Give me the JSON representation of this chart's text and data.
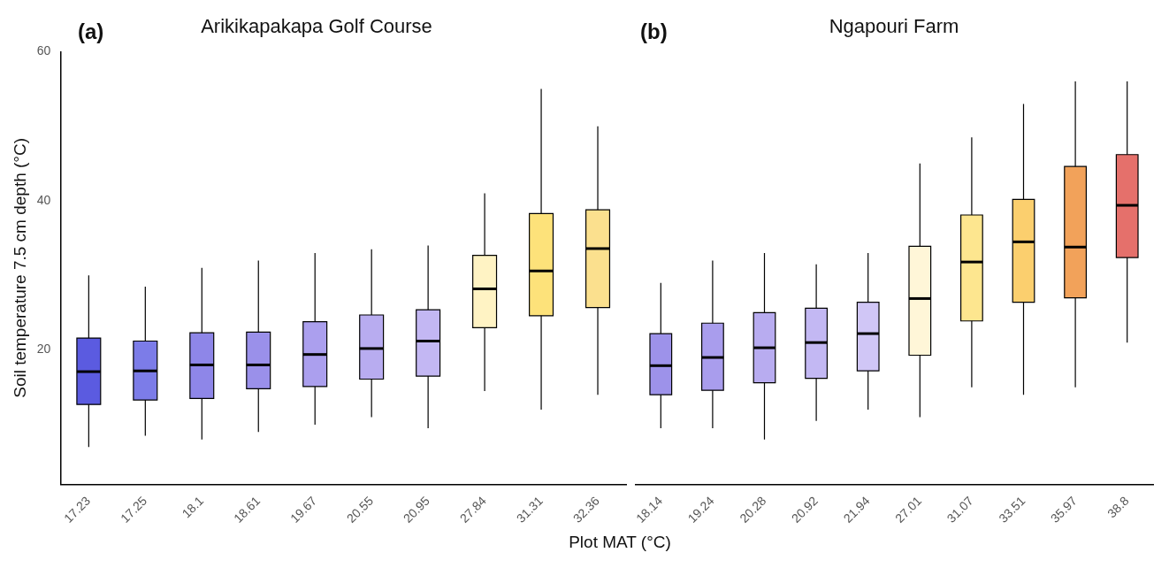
{
  "chart_data": [
    {
      "type": "box",
      "title": "Arikikapakapa Golf Course",
      "annotations": [
        "(a)"
      ],
      "ylabel": "Soil temperature 7.5 cm depth (°C)",
      "xlabel": "Plot MAT (°C)",
      "categories": [
        "17.23",
        "17.25",
        "18.1",
        "18.61",
        "19.67",
        "20.55",
        "20.95",
        "27.84",
        "31.31",
        "32.36"
      ],
      "colors": [
        "#5b5be0",
        "#7c7ce8",
        "#8e86e8",
        "#9a90ea",
        "#ab9fee",
        "#b8acf0",
        "#c3b7f3",
        "#fff3c4",
        "#fde27a",
        "#fbe08e"
      ],
      "boxes": [
        {
          "low": 7,
          "q1": 12.7,
          "median": 17.1,
          "q3": 21.6,
          "high": 30
        },
        {
          "low": 8.5,
          "q1": 13.3,
          "median": 17.2,
          "q3": 21.2,
          "high": 28.5
        },
        {
          "low": 8,
          "q1": 13.5,
          "median": 18,
          "q3": 22.3,
          "high": 31
        },
        {
          "low": 9,
          "q1": 14.8,
          "median": 18,
          "q3": 22.4,
          "high": 32
        },
        {
          "low": 10,
          "q1": 15.1,
          "median": 19.4,
          "q3": 23.8,
          "high": 33
        },
        {
          "low": 11,
          "q1": 16.1,
          "median": 20.2,
          "q3": 24.7,
          "high": 33.5
        },
        {
          "low": 9.5,
          "q1": 16.5,
          "median": 21.2,
          "q3": 25.4,
          "high": 34
        },
        {
          "low": 14.5,
          "q1": 23,
          "median": 28.2,
          "q3": 32.7,
          "high": 41
        },
        {
          "low": 12,
          "q1": 24.6,
          "median": 30.6,
          "q3": 38.3,
          "high": 55
        },
        {
          "low": 14,
          "q1": 25.7,
          "median": 33.6,
          "q3": 38.8,
          "high": 50
        }
      ],
      "ylim": [
        2,
        60
      ],
      "yticks": [
        20,
        40,
        60
      ],
      "grid": false
    },
    {
      "type": "box",
      "title": "Ngapouri Farm",
      "annotations": [
        "(b)"
      ],
      "categories": [
        "18.14",
        "19.24",
        "20.28",
        "20.92",
        "21.94",
        "27.01",
        "31.07",
        "33.51",
        "35.97",
        "38.8"
      ],
      "colors": [
        "#9d92ea",
        "#a99ded",
        "#b8acf0",
        "#c3b8f3",
        "#d0c6f6",
        "#fff6d8",
        "#fde68f",
        "#fbcf6e",
        "#f2a25a",
        "#e5706b"
      ],
      "boxes": [
        {
          "low": 9.5,
          "q1": 14,
          "median": 17.9,
          "q3": 22.2,
          "high": 29
        },
        {
          "low": 9.5,
          "q1": 14.6,
          "median": 19,
          "q3": 23.6,
          "high": 32
        },
        {
          "low": 8,
          "q1": 15.6,
          "median": 20.3,
          "q3": 25,
          "high": 33
        },
        {
          "low": 10.5,
          "q1": 16.2,
          "median": 21,
          "q3": 25.6,
          "high": 31.5
        },
        {
          "low": 12,
          "q1": 17.2,
          "median": 22.2,
          "q3": 26.4,
          "high": 33
        },
        {
          "low": 11,
          "q1": 19.3,
          "median": 26.9,
          "q3": 33.9,
          "high": 45
        },
        {
          "low": 15,
          "q1": 23.9,
          "median": 31.8,
          "q3": 38.1,
          "high": 48.5
        },
        {
          "low": 14,
          "q1": 26.4,
          "median": 34.5,
          "q3": 40.2,
          "high": 53
        },
        {
          "low": 15,
          "q1": 27,
          "median": 33.8,
          "q3": 44.6,
          "high": 56
        },
        {
          "low": 21,
          "q1": 32.4,
          "median": 39.4,
          "q3": 46.2,
          "high": 56
        }
      ],
      "ylim": [
        2,
        60
      ],
      "yticks": [
        20,
        40,
        60
      ],
      "tick_labels": "x",
      "grid": false
    }
  ]
}
